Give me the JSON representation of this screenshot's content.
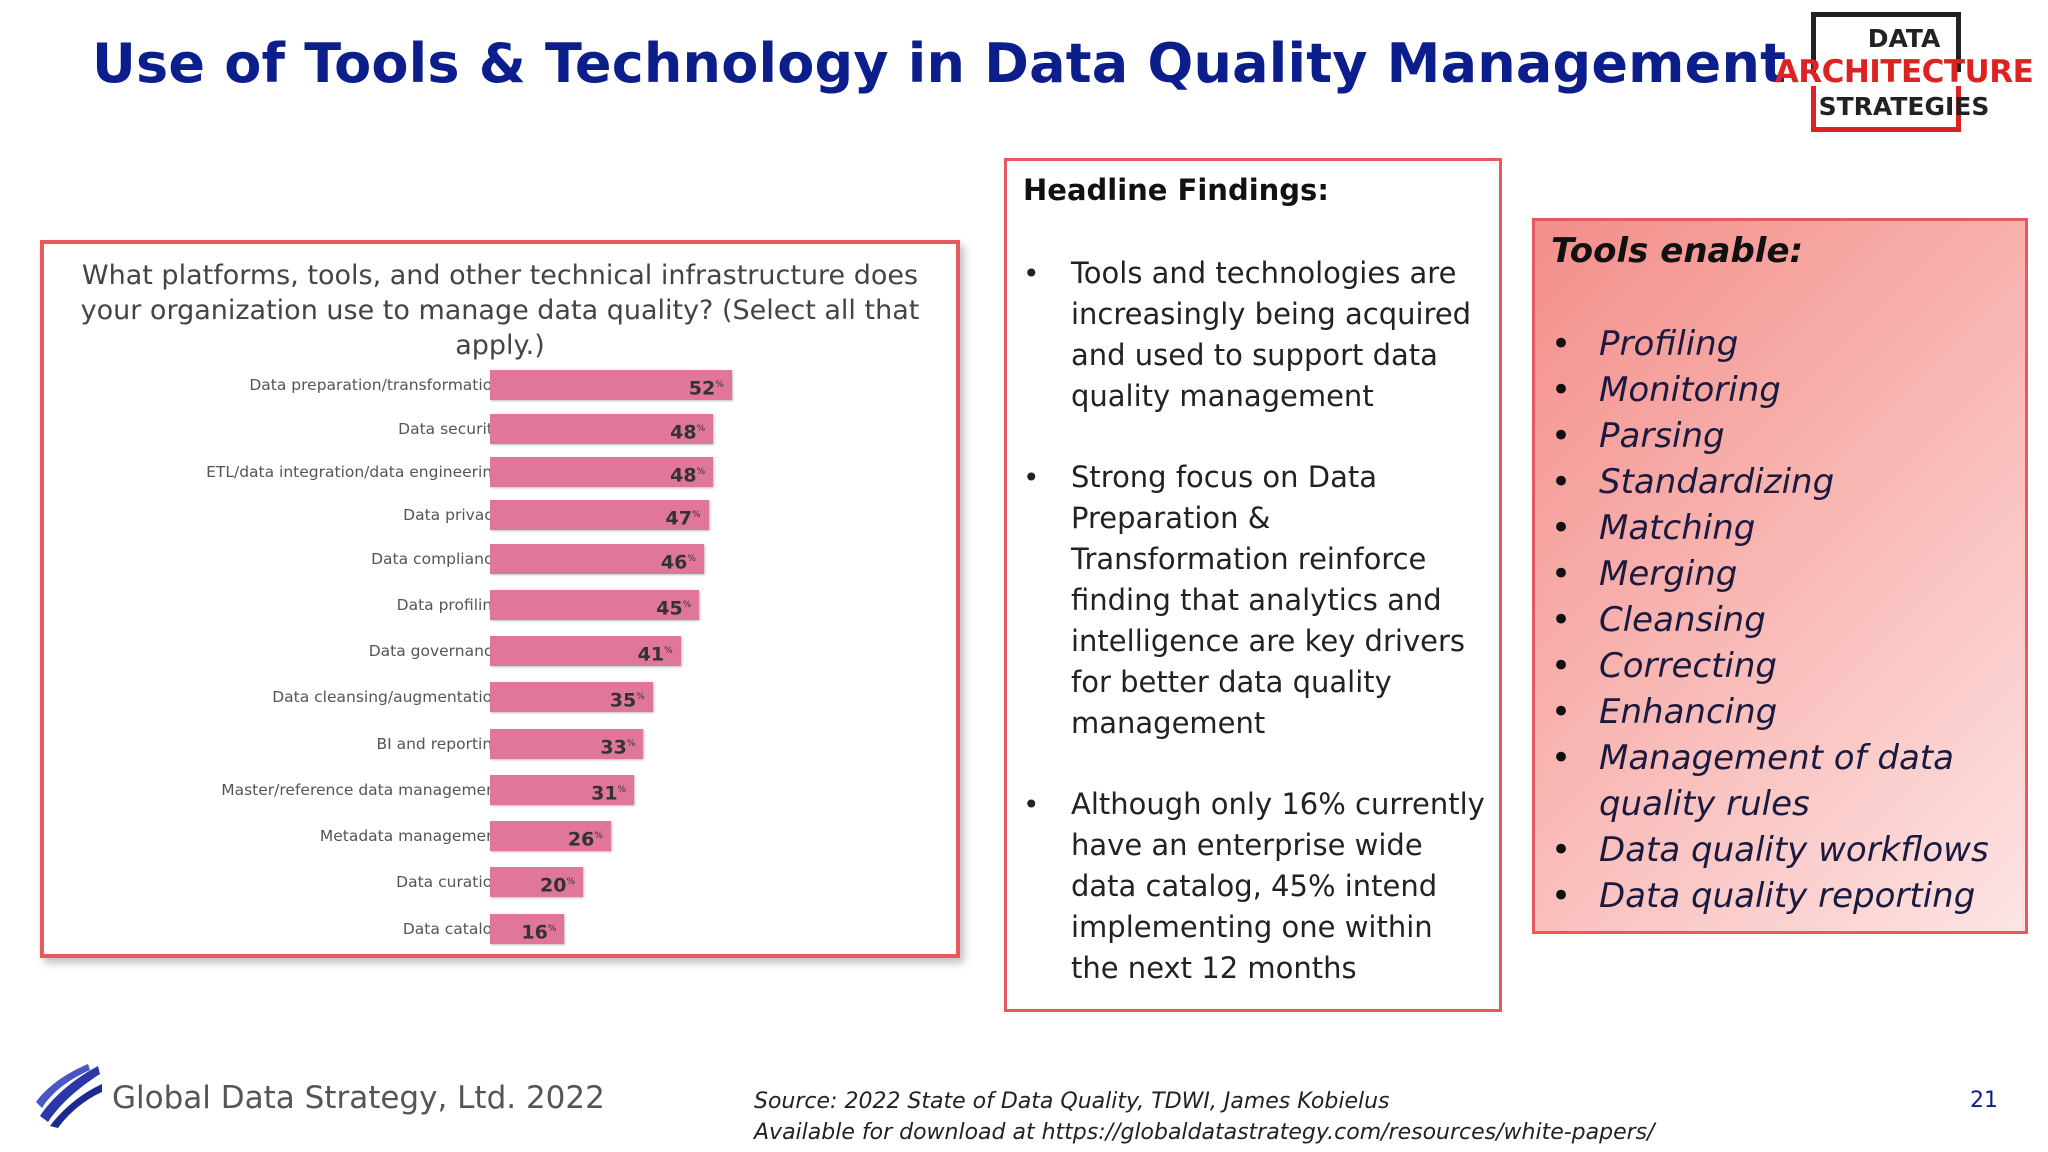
{
  "title": "Use of Tools & Technology in Data Quality Management",
  "logo": {
    "line1": "DATA",
    "line2": "ARCHITECTURE",
    "line3": "STRATEGIES"
  },
  "chart_data": {
    "type": "bar",
    "orientation": "horizontal",
    "title": "What platforms, tools, and other technical infrastructure does your organization use to manage data quality? (Select all that apply.)",
    "unit": "%",
    "categories": [
      "Data preparation/transformation",
      "Data security",
      "ETL/data integration/data engineering",
      "Data privacy",
      "Data compliance",
      "Data profiling",
      "Data governance",
      "Data cleansing/augmentation",
      "BI and reporting",
      "Master/reference data management",
      "Metadata management",
      "Data curation",
      "Data catalog"
    ],
    "values": [
      52,
      48,
      48,
      47,
      46,
      45,
      41,
      35,
      33,
      31,
      26,
      20,
      16
    ],
    "bar_color": "#e0769a",
    "xlim": [
      0,
      100
    ]
  },
  "findings": {
    "heading": "Headline Findings:",
    "items": [
      "Tools and technologies are increasingly being acquired and used to support data quality management",
      "Strong focus on Data Preparation & Transformation reinforce finding that analytics and intelligence are key drivers for better data quality management",
      "Although only 16% currently have an enterprise wide data catalog, 45% intend implementing one within the next 12 months"
    ]
  },
  "tools": {
    "heading": "Tools enable:",
    "items": [
      "Profiling",
      "Monitoring",
      "Parsing",
      "Standardizing",
      "Matching",
      "Merging",
      "Cleansing",
      "Correcting",
      "Enhancing",
      "Management of data quality rules",
      "Data quality workflows",
      "Data quality reporting"
    ]
  },
  "footer": {
    "company": "Global Data Strategy, Ltd. 2022",
    "source_line1": "Source: 2022 State of Data Quality, TDWI, James Kobielus",
    "source_line2": "Available for download at https://globaldatastrategy.com/resources/white-papers/",
    "page_number": "21"
  },
  "colors": {
    "title": "#0b1e8c",
    "accent": "#e8595f"
  }
}
